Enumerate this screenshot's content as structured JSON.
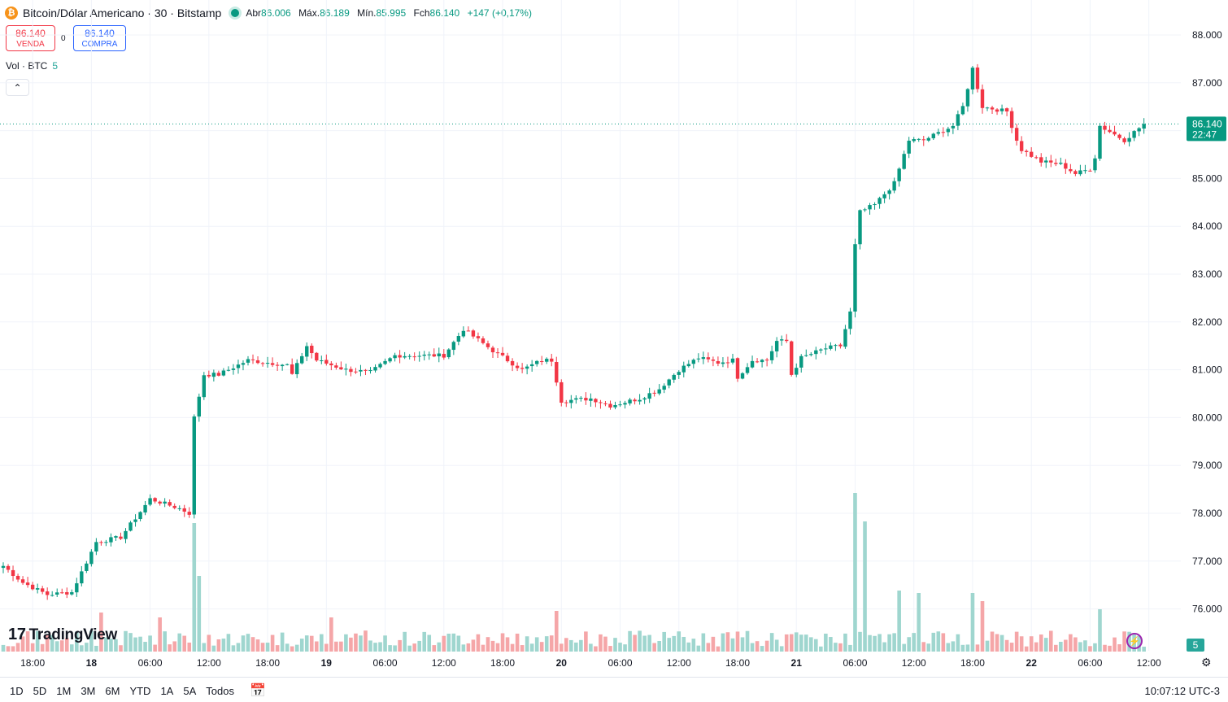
{
  "header": {
    "coin_icon": "₿",
    "title": "Bitcoin/Dólar Americano · 30 · Bitstamp",
    "open_label": "Abr",
    "open": "86.006",
    "high_label": "Máx.",
    "high": "86.189",
    "low_label": "Mín.",
    "low": "85.995",
    "close_label": "Fch",
    "close": "86.140",
    "change": "+147 (+0,17%)"
  },
  "trade": {
    "sell_price": "86.140",
    "sell_label": "VENDA",
    "spread": "0",
    "buy_price": "86.140",
    "buy_label": "COMPRA"
  },
  "volume_label": {
    "text": "Vol · BTC",
    "value": "5"
  },
  "collapse_icon": "⌃",
  "logo": {
    "mark": "17",
    "text": "TradingView"
  },
  "price_scale": {
    "ticks": [
      "88.000",
      "87.000",
      "86.000",
      "85.000",
      "84.000",
      "83.000",
      "82.000",
      "81.000",
      "80.000",
      "79.000",
      "78.000",
      "77.000",
      "76.000"
    ],
    "current_price": "86.140",
    "countdown": "22:47",
    "volume_badge": "5"
  },
  "time_axis": {
    "ticks": [
      {
        "i": 6,
        "label": "18:00"
      },
      {
        "i": 18,
        "label": "18"
      },
      {
        "i": 30,
        "label": "06:00"
      },
      {
        "i": 42,
        "label": "12:00"
      },
      {
        "i": 54,
        "label": "18:00"
      },
      {
        "i": 66,
        "label": "19"
      },
      {
        "i": 78,
        "label": "06:00"
      },
      {
        "i": 90,
        "label": "12:00"
      },
      {
        "i": 102,
        "label": "18:00"
      },
      {
        "i": 114,
        "label": "20"
      },
      {
        "i": 126,
        "label": "06:00"
      },
      {
        "i": 138,
        "label": "12:00"
      },
      {
        "i": 150,
        "label": "18:00"
      },
      {
        "i": 162,
        "label": "21"
      },
      {
        "i": 174,
        "label": "06:00"
      },
      {
        "i": 186,
        "label": "12:00"
      },
      {
        "i": 198,
        "label": "18:00"
      },
      {
        "i": 210,
        "label": "22"
      },
      {
        "i": 222,
        "label": "06:00"
      },
      {
        "i": 234,
        "label": "12:00"
      }
    ]
  },
  "bottom": {
    "ranges": [
      "1D",
      "5D",
      "1M",
      "3M",
      "6M",
      "YTD",
      "1A",
      "5A",
      "Todos"
    ],
    "calendar_icon": "calendar-icon",
    "clock": "10:07:12 UTC-3"
  },
  "colors": {
    "up": "#089981",
    "down": "#f23645",
    "vol_up": "#9fd6cf",
    "vol_down": "#f5a6a8"
  },
  "chart_data": {
    "type": "candlestick",
    "title": "Bitcoin/Dólar Americano · 30 · Bitstamp",
    "interval": "30",
    "ylim": [
      75500,
      88200
    ],
    "points": [
      [
        0,
        76900
      ],
      [
        4,
        76550
      ],
      [
        9,
        76300
      ],
      [
        14,
        76350
      ],
      [
        19,
        77400
      ],
      [
        24,
        77500
      ],
      [
        30,
        78300
      ],
      [
        36,
        78100
      ],
      [
        38,
        78000
      ],
      [
        39,
        80000
      ],
      [
        41,
        80900
      ],
      [
        44,
        80900
      ],
      [
        50,
        81200
      ],
      [
        58,
        81100
      ],
      [
        59,
        80900
      ],
      [
        62,
        81500
      ],
      [
        64,
        81200
      ],
      [
        70,
        81000
      ],
      [
        75,
        80950
      ],
      [
        80,
        81300
      ],
      [
        90,
        81300
      ],
      [
        94,
        81850
      ],
      [
        100,
        81400
      ],
      [
        106,
        81000
      ],
      [
        110,
        81200
      ],
      [
        112,
        81200
      ],
      [
        114,
        80350
      ],
      [
        120,
        80400
      ],
      [
        124,
        80250
      ],
      [
        130,
        80400
      ],
      [
        134,
        80600
      ],
      [
        138,
        81000
      ],
      [
        142,
        81250
      ],
      [
        146,
        81150
      ],
      [
        149,
        81200
      ],
      [
        150,
        80850
      ],
      [
        153,
        81200
      ],
      [
        156,
        81200
      ],
      [
        158,
        81600
      ],
      [
        160,
        81600
      ],
      [
        161,
        80900
      ],
      [
        163,
        81250
      ],
      [
        168,
        81450
      ],
      [
        171,
        81500
      ],
      [
        173,
        82200
      ],
      [
        174,
        83600
      ],
      [
        175,
        84300
      ],
      [
        178,
        84450
      ],
      [
        182,
        84900
      ],
      [
        185,
        85800
      ],
      [
        188,
        85800
      ],
      [
        194,
        86100
      ],
      [
        196,
        86500
      ],
      [
        198,
        87300
      ],
      [
        200,
        86500
      ],
      [
        205,
        86400
      ],
      [
        207,
        85800
      ],
      [
        208,
        85600
      ],
      [
        212,
        85350
      ],
      [
        216,
        85300
      ],
      [
        219,
        85100
      ],
      [
        222,
        85200
      ],
      [
        223,
        85450
      ],
      [
        224,
        86100
      ],
      [
        229,
        85800
      ],
      [
        233,
        86140
      ]
    ],
    "volume_spikes": [
      [
        20,
        48
      ],
      [
        32,
        42
      ],
      [
        39,
        158
      ],
      [
        40,
        93
      ],
      [
        67,
        42
      ],
      [
        113,
        50
      ],
      [
        174,
        195
      ],
      [
        176,
        160
      ],
      [
        183,
        75
      ],
      [
        187,
        72
      ],
      [
        198,
        72
      ],
      [
        200,
        62
      ],
      [
        224,
        52
      ]
    ],
    "volume_ylim": [
      0,
      230
    ]
  }
}
